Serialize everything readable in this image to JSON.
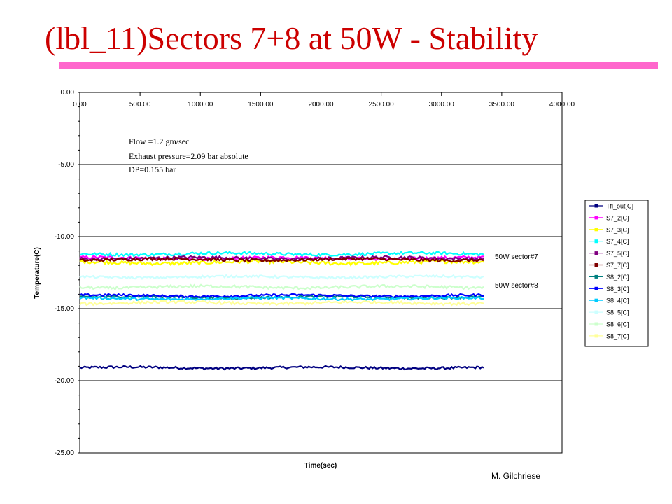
{
  "slide": {
    "title": "(lbl_11)Sectors 7+8 at 50W - Stability",
    "author": "M. Gilchriese",
    "accent_color": "#ff66cc",
    "title_color": "#cc0000"
  },
  "chart_data": {
    "type": "line",
    "title": "",
    "xlabel": "Time(sec)",
    "ylabel": "Temperature(C)",
    "xlim": [
      0,
      4000
    ],
    "ylim": [
      -25,
      0
    ],
    "x_ticks": [
      "0.00",
      "500.00",
      "1000.00",
      "1500.00",
      "2000.00",
      "2500.00",
      "3000.00",
      "3500.00",
      "4000.00"
    ],
    "y_ticks": [
      "0.00",
      "-5.00",
      "-10.00",
      "-15.00",
      "-20.00",
      "-25.00"
    ],
    "x_axis_position": "top",
    "grid": "horizontal",
    "legend_position": "right",
    "x_range": [
      0,
      3350
    ],
    "notes": [
      "Flow =1.2 gm/sec",
      "Exhaust pressure=2.09 bar absolute",
      "DP=0.155 bar"
    ],
    "annotations": [
      {
        "text": "50W sector#7",
        "x": 3550,
        "y": -11.4
      },
      {
        "text": "50W sector#8",
        "x": 3550,
        "y": -13.4
      }
    ],
    "series": [
      {
        "name": "Tfl_out[C]",
        "color": "#000080",
        "marker": "diamond",
        "y": -19.1,
        "noise": 0.08
      },
      {
        "name": "S7_2[C]",
        "color": "#ff00ff",
        "marker": "square",
        "y": -11.5,
        "noise": 0.1
      },
      {
        "name": "S7_3[C]",
        "color": "#ffff00",
        "marker": "triangle",
        "y": -11.8,
        "noise": 0.12
      },
      {
        "name": "S7_4[C]",
        "color": "#00ffff",
        "marker": "x",
        "y": -11.2,
        "noise": 0.1
      },
      {
        "name": "S7_5[C]",
        "color": "#800080",
        "marker": "star",
        "y": -11.5,
        "noise": 0.1
      },
      {
        "name": "S7_7[C]",
        "color": "#800000",
        "marker": "circle",
        "y": -11.6,
        "noise": 0.1
      },
      {
        "name": "S8_2[C]",
        "color": "#008080",
        "marker": "plus",
        "y": -14.2,
        "noise": 0.08
      },
      {
        "name": "S8_3[C]",
        "color": "#0000ff",
        "marker": "dash",
        "y": -14.1,
        "noise": 0.08
      },
      {
        "name": "S8_4[C]",
        "color": "#00ccff",
        "marker": "dash",
        "y": -14.3,
        "noise": 0.08
      },
      {
        "name": "S8_5[C]",
        "color": "#ccffff",
        "marker": "circle",
        "y": -12.8,
        "noise": 0.08
      },
      {
        "name": "S8_6[C]",
        "color": "#ccffcc",
        "marker": "square",
        "y": -13.5,
        "noise": 0.1
      },
      {
        "name": "S8_7[C]",
        "color": "#ffff99",
        "marker": "triangle",
        "y": -14.6,
        "noise": 0.1
      }
    ]
  }
}
